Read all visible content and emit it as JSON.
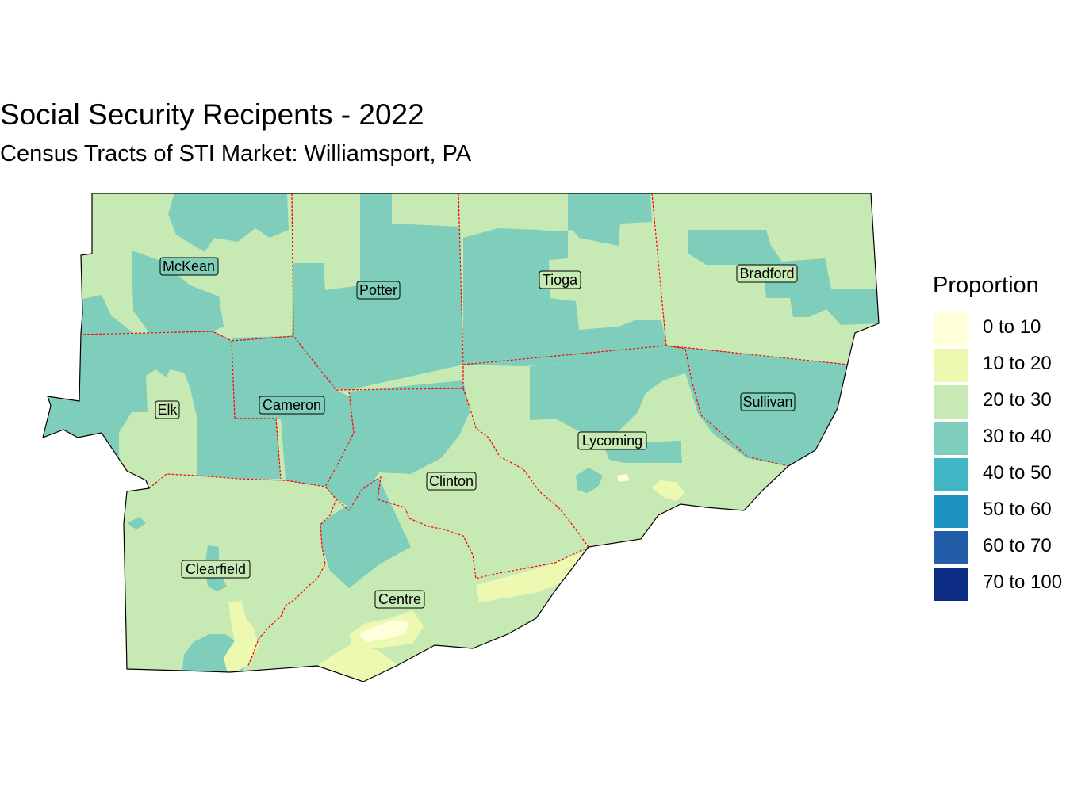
{
  "title": "Social Security Recipents - 2022",
  "subtitle": "Census Tracts of STI Market: Williamsport, PA",
  "legend": {
    "title": "Proportion",
    "items": [
      {
        "label": "0 to 10",
        "color": "#ffffd9"
      },
      {
        "label": "10 to 20",
        "color": "#edf8b1"
      },
      {
        "label": "20 to 30",
        "color": "#c7e9b4"
      },
      {
        "label": "30 to 40",
        "color": "#7fcdbb"
      },
      {
        "label": "40 to 50",
        "color": "#41b6c4"
      },
      {
        "label": "50 to 60",
        "color": "#1d91c0"
      },
      {
        "label": "60 to 70",
        "color": "#225ea8"
      },
      {
        "label": "70 to 100",
        "color": "#0c2c84"
      }
    ]
  },
  "counties": [
    "McKean",
    "Potter",
    "Tioga",
    "Bradford",
    "Elk",
    "Cameron",
    "Sullivan",
    "Lycoming",
    "Clinton",
    "Clearfield",
    "Centre"
  ],
  "colors": {
    "county_border": "#ff0000",
    "outline": "#000000"
  }
}
